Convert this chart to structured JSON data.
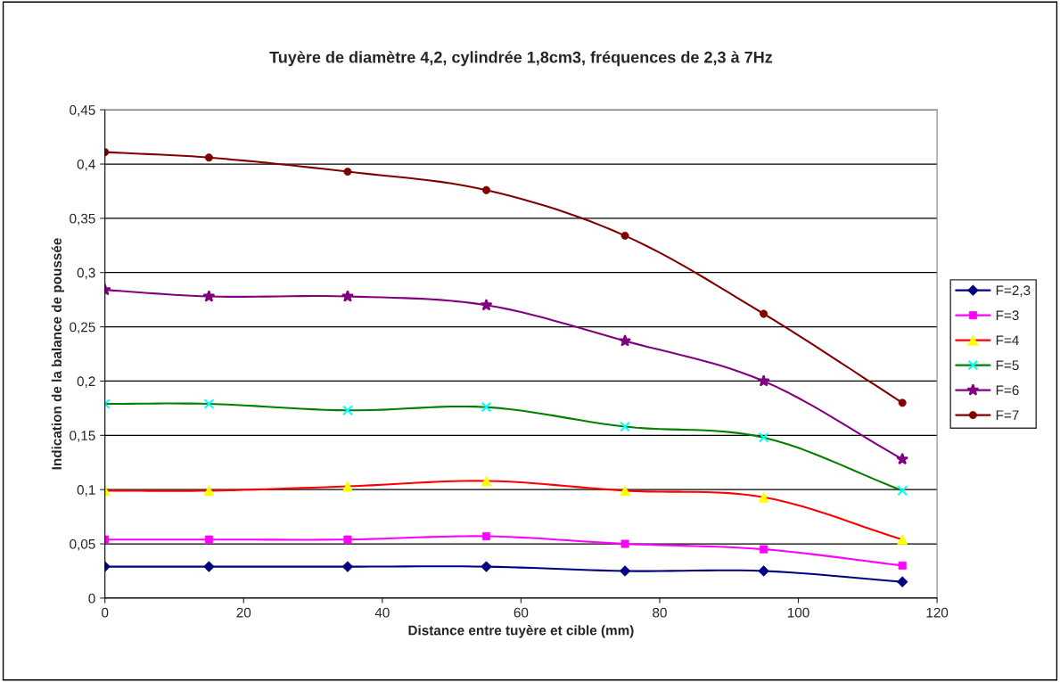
{
  "chart_data": {
    "type": "line",
    "title": "Tuyère de diamètre 4,2, cylindrée 1,8cm3, fréquences de 2,3 à 7Hz",
    "xlabel": "Distance entre tuyère et cible (mm)",
    "ylabel": "Indication de la balance de poussée",
    "x": [
      0,
      15,
      35,
      55,
      75,
      95,
      115
    ],
    "series": [
      {
        "name": "F=2,3",
        "color": "#000080",
        "marker": "diamond",
        "values": [
          0.029,
          0.029,
          0.029,
          0.029,
          0.025,
          0.025,
          0.015
        ]
      },
      {
        "name": "F=3",
        "color": "#ff00ff",
        "marker": "square",
        "values": [
          0.054,
          0.054,
          0.054,
          0.057,
          0.05,
          0.045,
          0.03
        ]
      },
      {
        "name": "F=4",
        "color": "#ff0000",
        "marker": "triangle",
        "colors": [
          "#ffff00",
          "#ffff00",
          "#ffff00",
          "#ffff00",
          "#ffff00",
          "#ffff00",
          "#ffff00"
        ],
        "values": [
          0.099,
          0.099,
          0.103,
          0.108,
          0.099,
          0.093,
          0.054
        ]
      },
      {
        "name": "F=5",
        "color": "#008000",
        "marker": "cross",
        "colors": [
          "#00ffff",
          "#00ffff",
          "#00ffff",
          "#00ffff",
          "#00ffff",
          "#00ffff",
          "#00ffff"
        ],
        "values": [
          0.179,
          0.179,
          0.173,
          0.176,
          0.158,
          0.148,
          0.099
        ]
      },
      {
        "name": "F=6",
        "color": "#800080",
        "marker": "star",
        "values": [
          0.284,
          0.278,
          0.278,
          0.27,
          0.237,
          0.2,
          0.128
        ]
      },
      {
        "name": "F=7",
        "color": "#800000",
        "marker": "circle",
        "values": [
          0.411,
          0.406,
          0.393,
          0.376,
          0.334,
          0.262,
          0.18
        ]
      }
    ],
    "xlim": [
      0,
      120
    ],
    "xticks": [
      0,
      20,
      40,
      60,
      80,
      100,
      120
    ],
    "ylim": [
      0,
      0.45
    ],
    "yticks": [
      {
        "value": 0,
        "label": "0"
      },
      {
        "value": 0.05,
        "label": "0,05"
      },
      {
        "value": 0.1,
        "label": "0,1"
      },
      {
        "value": 0.15,
        "label": "0,15"
      },
      {
        "value": 0.2,
        "label": "0,2"
      },
      {
        "value": 0.25,
        "label": "0,25"
      },
      {
        "value": 0.3,
        "label": "0,3"
      },
      {
        "value": 0.35,
        "label": "0,35"
      },
      {
        "value": 0.4,
        "label": "0,4"
      },
      {
        "value": 0.45,
        "label": "0,45"
      }
    ],
    "grid": "y",
    "legend": "right",
    "line_style": "solid"
  }
}
